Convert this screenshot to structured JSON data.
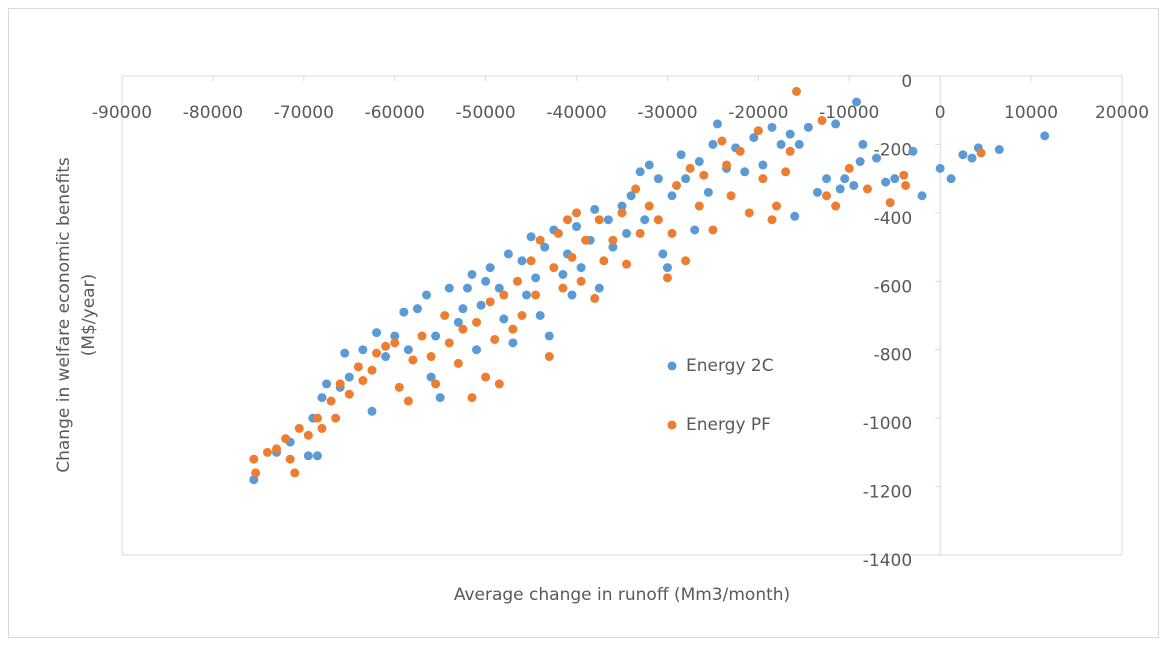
{
  "chart_data": {
    "type": "scatter",
    "xlabel": "Average change in runoff (Mm3/month)",
    "ylabel": [
      "Change in welfare economic benefits",
      "(M$/year)"
    ],
    "xlim": [
      -90000,
      20000
    ],
    "ylim": [
      -1400,
      0
    ],
    "xticks": [
      -90000,
      -80000,
      -70000,
      -60000,
      -50000,
      -40000,
      -30000,
      -20000,
      -10000,
      0,
      10000,
      20000
    ],
    "yticks": [
      0,
      -200,
      -400,
      -600,
      -800,
      -1000,
      -1200,
      -1400
    ],
    "grid": false,
    "legend_position": "center-right",
    "series": [
      {
        "name": "Energy 2C",
        "color": "#5b9bd5",
        "x": [
          -75500,
          -73000,
          -71500,
          -69500,
          -68500,
          -69000,
          -68000,
          -67500,
          -66000,
          -65000,
          -65500,
          -63500,
          -62500,
          -62000,
          -61000,
          -60000,
          -59000,
          -58500,
          -57500,
          -56500,
          -56000,
          -55000,
          -55500,
          -54000,
          -53000,
          -52500,
          -52000,
          -51500,
          -51000,
          -50500,
          -50000,
          -49500,
          -48500,
          -48000,
          -47500,
          -47000,
          -46000,
          -45500,
          -45000,
          -44500,
          -44000,
          -43500,
          -43000,
          -42500,
          -41500,
          -41000,
          -40500,
          -40000,
          -39500,
          -38500,
          -38000,
          -37500,
          -36500,
          -36000,
          -35000,
          -34500,
          -34000,
          -33000,
          -32500,
          -32000,
          -31000,
          -30500,
          -30000,
          -29500,
          -28500,
          -28000,
          -27000,
          -26500,
          -25500,
          -25000,
          -24500,
          -23500,
          -22500,
          -21500,
          -20500,
          -19500,
          -18500,
          -17500,
          -16500,
          -15500,
          -16000,
          -14500,
          -13500,
          -12500,
          -11500,
          -11000,
          -10500,
          -9500,
          -9200,
          -8800,
          -8500,
          -7000,
          -6000,
          -5000,
          -3000,
          -2000,
          0,
          1200,
          2500,
          3500,
          4200,
          6500,
          11500
        ],
        "values": [
          -1180,
          -1100,
          -1070,
          -1110,
          -1110,
          -1000,
          -940,
          -900,
          -910,
          -880,
          -810,
          -800,
          -980,
          -750,
          -820,
          -760,
          -690,
          -800,
          -680,
          -640,
          -880,
          -940,
          -760,
          -620,
          -720,
          -680,
          -620,
          -580,
          -800,
          -670,
          -600,
          -560,
          -620,
          -710,
          -520,
          -780,
          -540,
          -640,
          -470,
          -590,
          -700,
          -500,
          -760,
          -450,
          -580,
          -520,
          -640,
          -440,
          -560,
          -480,
          -390,
          -620,
          -420,
          -500,
          -380,
          -460,
          -350,
          -280,
          -420,
          -260,
          -300,
          -520,
          -560,
          -350,
          -230,
          -300,
          -450,
          -250,
          -340,
          -200,
          -140,
          -270,
          -210,
          -280,
          -180,
          -260,
          -150,
          -200,
          -170,
          -200,
          -410,
          -150,
          -340,
          -300,
          -140,
          -330,
          -300,
          -320,
          -76,
          -250,
          -200,
          -240,
          -310,
          -300,
          -220,
          -350,
          -270,
          -300,
          -230,
          -240,
          -210,
          -215,
          -175
        ]
      },
      {
        "name": "Energy PF",
        "color": "#ed7d31",
        "x": [
          -75500,
          -75300,
          -74000,
          -73000,
          -72000,
          -71500,
          -71000,
          -70500,
          -69500,
          -68500,
          -68000,
          -67000,
          -66500,
          -66000,
          -65000,
          -64000,
          -63500,
          -62500,
          -62000,
          -61000,
          -60000,
          -59500,
          -58500,
          -58000,
          -57000,
          -56000,
          -55500,
          -54500,
          -54000,
          -53000,
          -52500,
          -51500,
          -51000,
          -50000,
          -49500,
          -49000,
          -48500,
          -48000,
          -47000,
          -46500,
          -46000,
          -45000,
          -44500,
          -44000,
          -43000,
          -42500,
          -42000,
          -41500,
          -41000,
          -40500,
          -40000,
          -39500,
          -39000,
          -38000,
          -37500,
          -37000,
          -36000,
          -35000,
          -34500,
          -33500,
          -33000,
          -32000,
          -31000,
          -30000,
          -29500,
          -29000,
          -28000,
          -27500,
          -26500,
          -26000,
          -25000,
          -24000,
          -23500,
          -23000,
          -22000,
          -21000,
          -20000,
          -19500,
          -18500,
          -18000,
          -17000,
          -16500,
          -15800,
          -13000,
          -12500,
          -11500,
          -10000,
          -8000,
          -5500,
          -4000,
          -3800,
          4500
        ],
        "values": [
          -1120,
          -1160,
          -1100,
          -1090,
          -1060,
          -1120,
          -1160,
          -1030,
          -1050,
          -1000,
          -1030,
          -950,
          -1000,
          -900,
          -930,
          -850,
          -890,
          -860,
          -810,
          -790,
          -780,
          -910,
          -950,
          -830,
          -760,
          -820,
          -900,
          -700,
          -780,
          -840,
          -740,
          -940,
          -720,
          -880,
          -660,
          -770,
          -900,
          -640,
          -740,
          -600,
          -700,
          -540,
          -640,
          -480,
          -820,
          -560,
          -460,
          -620,
          -420,
          -530,
          -400,
          -600,
          -480,
          -650,
          -420,
          -540,
          -480,
          -400,
          -550,
          -330,
          -460,
          -380,
          -420,
          -590,
          -460,
          -320,
          -540,
          -270,
          -380,
          -290,
          -450,
          -190,
          -260,
          -350,
          -220,
          -400,
          -160,
          -300,
          -420,
          -380,
          -280,
          -220,
          -45,
          -130,
          -350,
          -380,
          -270,
          -330,
          -370,
          -290,
          -320,
          -225
        ]
      }
    ]
  }
}
